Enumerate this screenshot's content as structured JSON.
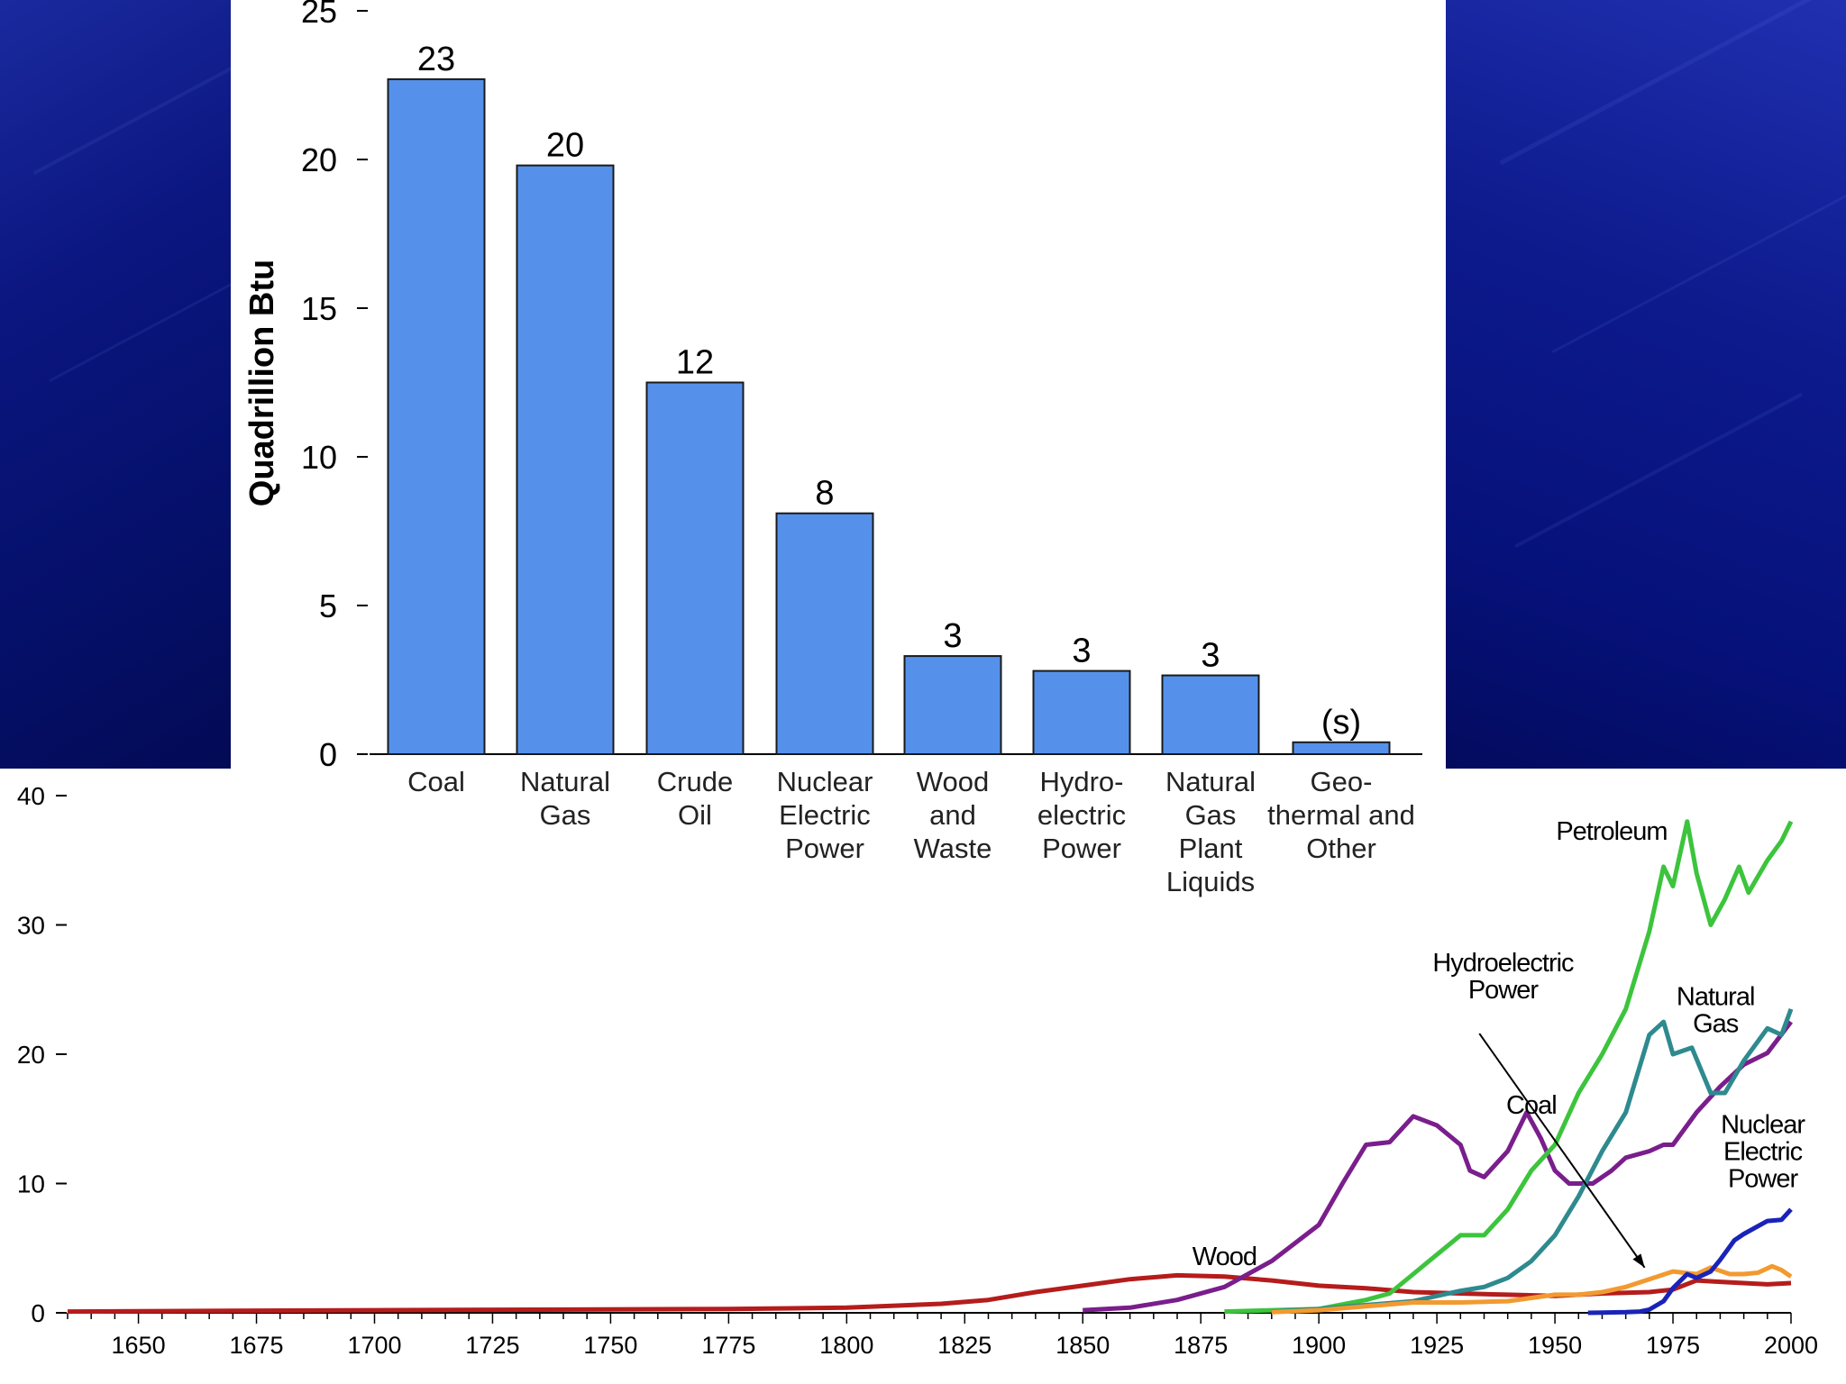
{
  "chart_data": [
    {
      "type": "bar",
      "title": "",
      "xlabel": "",
      "ylabel": "Quadrillion Btu",
      "ylim": [
        0,
        25
      ],
      "yticks": [
        "0",
        "5",
        "10",
        "15",
        "20",
        "25"
      ],
      "categories": [
        [
          "Coal"
        ],
        [
          "Natural",
          "Gas"
        ],
        [
          "Crude",
          "Oil"
        ],
        [
          "Nuclear",
          "Electric",
          "Power"
        ],
        [
          "Wood",
          "and",
          "Waste"
        ],
        [
          "Hydro-",
          "electric",
          "Power"
        ],
        [
          "Natural",
          "Gas",
          "Plant",
          "Liquids"
        ],
        [
          "Geo-",
          "thermal and",
          "Other"
        ]
      ],
      "values": [
        22.7,
        19.8,
        12.5,
        8.1,
        3.3,
        2.8,
        2.65,
        0.4
      ],
      "data_labels": [
        "23",
        "20",
        "12",
        "8",
        "3",
        "3",
        "3",
        "(s)"
      ],
      "bar_color": "#5591eb"
    },
    {
      "type": "line",
      "title": "",
      "xlim": [
        1635,
        2000
      ],
      "ylim": [
        0,
        40
      ],
      "yticks": [
        "0",
        "10",
        "20",
        "30",
        "40"
      ],
      "xticks": [
        "1650",
        "1675",
        "1700",
        "1725",
        "1750",
        "1775",
        "1800",
        "1825",
        "1850",
        "1875",
        "1900",
        "1925",
        "1950",
        "1975",
        "2000"
      ],
      "series": [
        {
          "name": "Wood",
          "label": "Wood",
          "color": "#b51c1c",
          "points": [
            [
              1635,
              0.1
            ],
            [
              1700,
              0.2
            ],
            [
              1775,
              0.3
            ],
            [
              1800,
              0.4
            ],
            [
              1820,
              0.7
            ],
            [
              1830,
              1.0
            ],
            [
              1840,
              1.6
            ],
            [
              1850,
              2.1
            ],
            [
              1860,
              2.6
            ],
            [
              1870,
              2.9
            ],
            [
              1880,
              2.8
            ],
            [
              1890,
              2.5
            ],
            [
              1900,
              2.1
            ],
            [
              1910,
              1.9
            ],
            [
              1920,
              1.6
            ],
            [
              1930,
              1.5
            ],
            [
              1940,
              1.4
            ],
            [
              1950,
              1.3
            ],
            [
              1960,
              1.5
            ],
            [
              1970,
              1.6
            ],
            [
              1975,
              1.8
            ],
            [
              1980,
              2.5
            ],
            [
              1985,
              2.4
            ],
            [
              1990,
              2.3
            ],
            [
              1995,
              2.2
            ],
            [
              2000,
              2.3
            ]
          ]
        },
        {
          "name": "Coal",
          "label": "Coal",
          "color": "#7a1e8c",
          "points": [
            [
              1850,
              0.2
            ],
            [
              1860,
              0.4
            ],
            [
              1870,
              1.0
            ],
            [
              1880,
              2.0
            ],
            [
              1890,
              4.0
            ],
            [
              1900,
              6.8
            ],
            [
              1905,
              10.0
            ],
            [
              1910,
              13.0
            ],
            [
              1915,
              13.2
            ],
            [
              1920,
              15.2
            ],
            [
              1925,
              14.5
            ],
            [
              1930,
              13.0
            ],
            [
              1932,
              11.0
            ],
            [
              1935,
              10.5
            ],
            [
              1940,
              12.5
            ],
            [
              1944,
              15.5
            ],
            [
              1947,
              13.5
            ],
            [
              1950,
              11.0
            ],
            [
              1953,
              10.0
            ],
            [
              1958,
              10.0
            ],
            [
              1962,
              11.0
            ],
            [
              1965,
              12.0
            ],
            [
              1970,
              12.5
            ],
            [
              1973,
              13.0
            ],
            [
              1975,
              13.0
            ],
            [
              1980,
              15.5
            ],
            [
              1985,
              17.5
            ],
            [
              1990,
              19.2
            ],
            [
              1995,
              20.1
            ],
            [
              2000,
              22.5
            ]
          ]
        },
        {
          "name": "Petroleum",
          "label": "Petroleum",
          "color": "#3cc43c",
          "points": [
            [
              1880,
              0.1
            ],
            [
              1900,
              0.3
            ],
            [
              1910,
              1.0
            ],
            [
              1915,
              1.5
            ],
            [
              1920,
              3.0
            ],
            [
              1925,
              4.5
            ],
            [
              1930,
              6.0
            ],
            [
              1935,
              6.0
            ],
            [
              1940,
              8.0
            ],
            [
              1945,
              11.0
            ],
            [
              1950,
              13.0
            ],
            [
              1955,
              17.0
            ],
            [
              1960,
              20.0
            ],
            [
              1965,
              23.5
            ],
            [
              1970,
              29.5
            ],
            [
              1973,
              34.5
            ],
            [
              1975,
              33.0
            ],
            [
              1978,
              38.0
            ],
            [
              1980,
              34.0
            ],
            [
              1983,
              30.0
            ],
            [
              1986,
              32.0
            ],
            [
              1989,
              34.5
            ],
            [
              1991,
              32.5
            ],
            [
              1995,
              35.0
            ],
            [
              1998,
              36.5
            ],
            [
              2000,
              38.0
            ]
          ]
        },
        {
          "name": "Natural Gas",
          "label": "Natural\nGas",
          "color": "#2e8a8e",
          "points": [
            [
              1890,
              0.1
            ],
            [
              1900,
              0.3
            ],
            [
              1910,
              0.6
            ],
            [
              1920,
              0.9
            ],
            [
              1930,
              1.7
            ],
            [
              1935,
              2.0
            ],
            [
              1940,
              2.7
            ],
            [
              1945,
              4.0
            ],
            [
              1950,
              6.0
            ],
            [
              1955,
              9.0
            ],
            [
              1960,
              12.5
            ],
            [
              1965,
              15.5
            ],
            [
              1970,
              21.5
            ],
            [
              1973,
              22.5
            ],
            [
              1975,
              20.0
            ],
            [
              1979,
              20.5
            ],
            [
              1983,
              17.0
            ],
            [
              1986,
              17.0
            ],
            [
              1990,
              19.5
            ],
            [
              1995,
              22.0
            ],
            [
              1998,
              21.5
            ],
            [
              2000,
              23.5
            ]
          ]
        },
        {
          "name": "Hydroelectric Power",
          "label": "Hydroelectric\nPower",
          "color": "#f29a30",
          "points": [
            [
              1890,
              0.05
            ],
            [
              1900,
              0.2
            ],
            [
              1910,
              0.5
            ],
            [
              1920,
              0.8
            ],
            [
              1930,
              0.8
            ],
            [
              1940,
              0.9
            ],
            [
              1950,
              1.4
            ],
            [
              1955,
              1.4
            ],
            [
              1960,
              1.6
            ],
            [
              1965,
              2.0
            ],
            [
              1970,
              2.6
            ],
            [
              1975,
              3.2
            ],
            [
              1980,
              3.0
            ],
            [
              1983,
              3.5
            ],
            [
              1987,
              3.0
            ],
            [
              1990,
              3.0
            ],
            [
              1993,
              3.1
            ],
            [
              1996,
              3.6
            ],
            [
              1998,
              3.3
            ],
            [
              2000,
              2.8
            ]
          ]
        },
        {
          "name": "Nuclear Electric Power",
          "label": "Nuclear\nElectric\nPower",
          "color": "#1a23b8",
          "points": [
            [
              1957,
              0.0
            ],
            [
              1965,
              0.05
            ],
            [
              1968,
              0.1
            ],
            [
              1970,
              0.25
            ],
            [
              1973,
              0.9
            ],
            [
              1975,
              1.9
            ],
            [
              1978,
              3.0
            ],
            [
              1980,
              2.7
            ],
            [
              1983,
              3.2
            ],
            [
              1985,
              4.1
            ],
            [
              1988,
              5.6
            ],
            [
              1990,
              6.1
            ],
            [
              1995,
              7.1
            ],
            [
              1998,
              7.2
            ],
            [
              2000,
              8.0
            ]
          ]
        }
      ],
      "annotations": [
        {
          "text": "Petroleum"
        },
        {
          "text": "Natural\nGas"
        },
        {
          "text": "Coal"
        },
        {
          "text": "Wood"
        },
        {
          "text": "Hydroelectric\nPower"
        },
        {
          "text": "Nuclear\nElectric\nPower"
        }
      ]
    }
  ]
}
